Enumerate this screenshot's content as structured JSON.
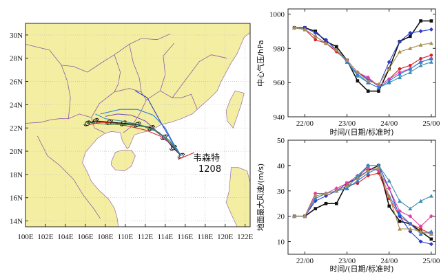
{
  "chart_data": [
    {
      "type": "map",
      "xlim": [
        100,
        122.5
      ],
      "ylim": [
        13.5,
        31
      ],
      "x_ticks": [
        "100E",
        "102E",
        "104E",
        "106E",
        "108E",
        "110E",
        "112E",
        "114E",
        "116E",
        "118E",
        "120E",
        "122E"
      ],
      "y_ticks": [
        "14N",
        "16N",
        "18N",
        "20N",
        "22N",
        "24N",
        "26N",
        "28N",
        "30N"
      ],
      "annotation": {
        "name": "韦森特",
        "number": "1208"
      },
      "colors": {
        "land": "#f4eea2",
        "sea": "#ffffff",
        "border": "#8e5aa8",
        "track_obs": "#111111"
      },
      "tracks": [
        {
          "color": "#111111",
          "points": [
            [
              115.6,
              19.6
            ],
            [
              114.8,
              20.3
            ],
            [
              113.9,
              21.2
            ],
            [
              112.6,
              22.0
            ],
            [
              111.2,
              22.3
            ],
            [
              109.8,
              22.4
            ],
            [
              108.4,
              22.5
            ],
            [
              107.0,
              22.6
            ],
            [
              106.2,
              22.4
            ]
          ]
        },
        {
          "color": "#d62020",
          "points": [
            [
              115.6,
              19.6
            ],
            [
              114.6,
              20.6
            ],
            [
              113.5,
              21.3
            ],
            [
              112.1,
              21.8
            ],
            [
              110.6,
              22.1
            ],
            [
              109.0,
              22.4
            ],
            [
              107.6,
              22.5
            ],
            [
              106.4,
              22.3
            ]
          ]
        },
        {
          "color": "#2a3cc8",
          "points": [
            [
              115.6,
              19.6
            ],
            [
              114.7,
              20.8
            ],
            [
              113.8,
              22.1
            ],
            [
              112.9,
              23.5
            ],
            [
              112.2,
              24.6
            ],
            [
              111.0,
              25.2
            ]
          ]
        },
        {
          "color": "#3a8fb0",
          "points": [
            [
              115.6,
              19.6
            ],
            [
              114.5,
              20.9
            ],
            [
              113.0,
              21.8
            ],
            [
              111.4,
              22.3
            ],
            [
              109.6,
              22.6
            ],
            [
              108.0,
              22.8
            ],
            [
              107.0,
              23.2
            ]
          ]
        },
        {
          "color": "#7b58b8",
          "points": [
            [
              115.6,
              19.6
            ],
            [
              114.8,
              20.4
            ],
            [
              113.6,
              21.4
            ],
            [
              112.0,
              22.6
            ],
            [
              110.6,
              23.1
            ],
            [
              109.2,
              23.2
            ],
            [
              108.0,
              23.0
            ]
          ]
        },
        {
          "color": "#3c8a3c",
          "points": [
            [
              115.6,
              19.6
            ],
            [
              114.7,
              20.6
            ],
            [
              113.4,
              21.6
            ],
            [
              111.9,
              22.1
            ],
            [
              110.2,
              22.3
            ],
            [
              108.6,
              22.3
            ],
            [
              107.0,
              22.4
            ],
            [
              106.0,
              22.5
            ]
          ]
        },
        {
          "color": "#2b7be0",
          "points": [
            [
              115.6,
              19.6
            ],
            [
              114.8,
              20.7
            ],
            [
              114.0,
              22.0
            ],
            [
              112.8,
              23.1
            ],
            [
              111.2,
              23.6
            ],
            [
              109.5,
              23.6
            ],
            [
              107.5,
              23.2
            ]
          ]
        }
      ]
    },
    {
      "type": "line",
      "ylabel": "中心气压/hPa",
      "xlabel": "时间/(日期/标准时)",
      "x_ticks": [
        "22/00",
        "23/00",
        "24/00",
        "25/00"
      ],
      "xlim": [
        21.6,
        25.1
      ],
      "ylim": [
        940,
        1003
      ],
      "y_ticks": [
        940,
        960,
        980,
        1000
      ],
      "x": [
        21.75,
        22.0,
        22.25,
        22.5,
        22.75,
        23.0,
        23.25,
        23.5,
        23.75,
        24.0,
        24.25,
        24.5,
        24.75,
        25.0
      ],
      "series": [
        {
          "color": "#111111",
          "marker": "square",
          "values": [
            992,
            992,
            990,
            984,
            981,
            973,
            961,
            955,
            955,
            968,
            984,
            987,
            996,
            996
          ]
        },
        {
          "color": "#d62020",
          "marker": "circle",
          "values": [
            992,
            991,
            985,
            983,
            978,
            973,
            966,
            962,
            958,
            962,
            968,
            970,
            974,
            976
          ]
        },
        {
          "color": "#2a3cc8",
          "marker": "diamond",
          "values": [
            992,
            992,
            989,
            985,
            979,
            973,
            966,
            962,
            958,
            972,
            984,
            989,
            990,
            991
          ]
        },
        {
          "color": "#e040a0",
          "marker": "diamond",
          "values": [
            992,
            991,
            987,
            983,
            979,
            973,
            966,
            963,
            958,
            962,
            966,
            968,
            972,
            974
          ]
        },
        {
          "color": "#3a8fb0",
          "marker": "triangle",
          "values": [
            992,
            991,
            987,
            983,
            979,
            972,
            964,
            960,
            957,
            960,
            963,
            966,
            970,
            972
          ]
        },
        {
          "color": "#2b7be0",
          "marker": "triangle",
          "values": [
            992,
            991,
            987,
            983,
            979,
            972,
            965,
            960,
            957,
            961,
            965,
            968,
            972,
            974
          ]
        },
        {
          "color": "#a89050",
          "marker": "triangle",
          "values": [
            992,
            991,
            987,
            983,
            979,
            973,
            966,
            961,
            959,
            968,
            978,
            980,
            982,
            983
          ]
        }
      ]
    },
    {
      "type": "line",
      "ylabel": "地面最大风速/(m/s)",
      "xlabel": "时间/(日期/标准时)",
      "x_ticks": [
        "22/00",
        "23/00",
        "24/00",
        "25/00"
      ],
      "xlim": [
        21.6,
        25.1
      ],
      "ylim": [
        5,
        50
      ],
      "y_ticks": [
        10,
        20,
        30,
        40,
        50
      ],
      "x": [
        21.75,
        22.0,
        22.25,
        22.5,
        22.75,
        23.0,
        23.25,
        23.5,
        23.75,
        24.0,
        24.25,
        24.5,
        24.75,
        25.0
      ],
      "series": [
        {
          "color": "#111111",
          "marker": "square",
          "values": [
            20,
            20,
            23,
            25,
            25,
            33,
            35,
            38,
            40,
            24,
            18,
            17,
            14,
            11
          ]
        },
        {
          "color": "#d62020",
          "marker": "circle",
          "values": [
            20,
            20,
            29,
            29,
            30,
            32,
            33,
            36,
            37,
            27,
            20,
            17,
            15,
            13
          ]
        },
        {
          "color": "#2a3cc8",
          "marker": "diamond",
          "values": [
            20,
            20,
            26,
            28,
            30,
            33,
            35,
            40,
            40,
            31,
            20,
            14,
            10,
            9
          ]
        },
        {
          "color": "#e040a0",
          "marker": "diamond",
          "values": [
            20,
            20,
            29,
            29,
            31,
            33,
            36,
            39,
            38,
            31,
            22,
            20,
            16,
            20
          ]
        },
        {
          "color": "#3a8fb0",
          "marker": "triangle",
          "values": [
            20,
            20,
            27,
            29,
            30,
            31,
            36,
            40,
            40,
            34,
            26,
            23,
            26,
            28
          ]
        },
        {
          "color": "#2b7be0",
          "marker": "triangle",
          "values": [
            20,
            20,
            27,
            29,
            30,
            31,
            34,
            37,
            39,
            28,
            21,
            17,
            13,
            14
          ]
        },
        {
          "color": "#a89050",
          "marker": "triangle",
          "values": [
            20,
            20,
            28,
            29,
            30,
            32,
            35,
            38,
            39,
            28,
            15,
            15,
            14,
            13
          ]
        }
      ]
    }
  ]
}
